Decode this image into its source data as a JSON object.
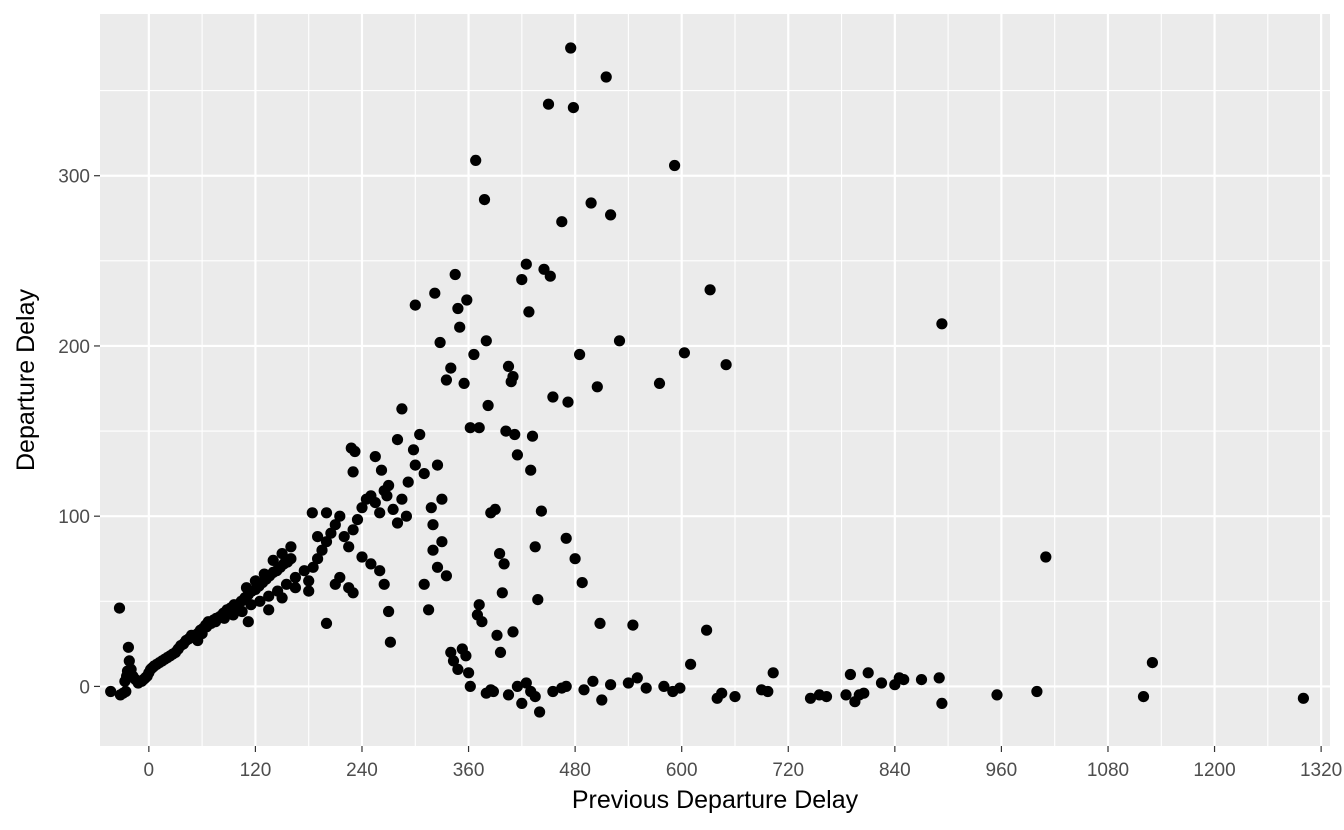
{
  "chart_data": {
    "type": "scatter",
    "title": "",
    "xlabel": "Previous Departure Delay",
    "ylabel": "Departure Delay",
    "xlim": [
      -55,
      1330
    ],
    "ylim": [
      -35,
      395
    ],
    "x_ticks": [
      0,
      120,
      240,
      360,
      480,
      600,
      720,
      840,
      960,
      1080,
      1200,
      1320
    ],
    "x_tick_labels": [
      "0",
      "120",
      "240",
      "360",
      "480",
      "600",
      "720",
      "840",
      "960",
      "1080",
      "1200",
      "1320"
    ],
    "y_ticks": [
      0,
      100,
      200,
      300
    ],
    "y_tick_labels": [
      "0",
      "100",
      "200",
      "300"
    ],
    "grid": true,
    "panel_background": "#ebebeb",
    "grid_color": "#ffffff",
    "point_color": "#000000",
    "series": [
      {
        "points": [
          [
            -43,
            -3
          ],
          [
            -33,
            46
          ],
          [
            -32,
            -5
          ],
          [
            -29,
            -4
          ],
          [
            -26,
            -3
          ],
          [
            -27,
            3
          ],
          [
            -25,
            6
          ],
          [
            -24,
            9
          ],
          [
            -23,
            23
          ],
          [
            -22,
            15
          ],
          [
            -20,
            10
          ],
          [
            -18,
            6
          ],
          [
            -15,
            4
          ],
          [
            -12,
            2
          ],
          [
            -10,
            3
          ],
          [
            -8,
            3
          ],
          [
            -6,
            4
          ],
          [
            -4,
            5
          ],
          [
            -2,
            6
          ],
          [
            0,
            8
          ],
          [
            2,
            10
          ],
          [
            4,
            11
          ],
          [
            6,
            12
          ],
          [
            9,
            13
          ],
          [
            12,
            14
          ],
          [
            15,
            15
          ],
          [
            18,
            16
          ],
          [
            21,
            17
          ],
          [
            24,
            18
          ],
          [
            27,
            19
          ],
          [
            30,
            20
          ],
          [
            33,
            22
          ],
          [
            36,
            24
          ],
          [
            39,
            25
          ],
          [
            42,
            27
          ],
          [
            45,
            28
          ],
          [
            48,
            30
          ],
          [
            52,
            30
          ],
          [
            55,
            31
          ],
          [
            58,
            33
          ],
          [
            61,
            34
          ],
          [
            64,
            36
          ],
          [
            67,
            38
          ],
          [
            70,
            37
          ],
          [
            73,
            39
          ],
          [
            76,
            40
          ],
          [
            80,
            41
          ],
          [
            84,
            43
          ],
          [
            88,
            45
          ],
          [
            92,
            46
          ],
          [
            96,
            48
          ],
          [
            100,
            47
          ],
          [
            104,
            50
          ],
          [
            108,
            52
          ],
          [
            112,
            54
          ],
          [
            116,
            56
          ],
          [
            120,
            57
          ],
          [
            124,
            59
          ],
          [
            128,
            61
          ],
          [
            132,
            63
          ],
          [
            136,
            65
          ],
          [
            140,
            67
          ],
          [
            144,
            68
          ],
          [
            148,
            70
          ],
          [
            152,
            72
          ],
          [
            156,
            73
          ],
          [
            160,
            75
          ],
          [
            55,
            27
          ],
          [
            60,
            31
          ],
          [
            65,
            35
          ],
          [
            75,
            38
          ],
          [
            85,
            40
          ],
          [
            95,
            42
          ],
          [
            105,
            44
          ],
          [
            115,
            48
          ],
          [
            125,
            50
          ],
          [
            135,
            53
          ],
          [
            145,
            56
          ],
          [
            155,
            60
          ],
          [
            165,
            64
          ],
          [
            175,
            68
          ],
          [
            110,
            58
          ],
          [
            120,
            62
          ],
          [
            130,
            66
          ],
          [
            140,
            74
          ],
          [
            150,
            78
          ],
          [
            160,
            82
          ],
          [
            112,
            38
          ],
          [
            135,
            45
          ],
          [
            150,
            52
          ],
          [
            165,
            58
          ],
          [
            180,
            62
          ],
          [
            185,
            70
          ],
          [
            190,
            75
          ],
          [
            195,
            80
          ],
          [
            200,
            85
          ],
          [
            205,
            90
          ],
          [
            210,
            95
          ],
          [
            215,
            100
          ],
          [
            220,
            88
          ],
          [
            225,
            82
          ],
          [
            230,
            92
          ],
          [
            235,
            98
          ],
          [
            240,
            105
          ],
          [
            245,
            110
          ],
          [
            250,
            112
          ],
          [
            255,
            108
          ],
          [
            260,
            102
          ],
          [
            265,
            115
          ],
          [
            270,
            118
          ],
          [
            275,
            104
          ],
          [
            280,
            96
          ],
          [
            285,
            110
          ],
          [
            290,
            100
          ],
          [
            180,
            56
          ],
          [
            190,
            88
          ],
          [
            200,
            102
          ],
          [
            210,
            60
          ],
          [
            215,
            64
          ],
          [
            225,
            58
          ],
          [
            230,
            55
          ],
          [
            240,
            76
          ],
          [
            250,
            72
          ],
          [
            260,
            68
          ],
          [
            265,
            60
          ],
          [
            270,
            44
          ],
          [
            272,
            26
          ],
          [
            200,
            37
          ],
          [
            184,
            102
          ],
          [
            230,
            126
          ],
          [
            228,
            140
          ],
          [
            232,
            138
          ],
          [
            255,
            135
          ],
          [
            262,
            127
          ],
          [
            268,
            112
          ],
          [
            280,
            145
          ],
          [
            285,
            163
          ],
          [
            292,
            120
          ],
          [
            298,
            139
          ],
          [
            300,
            130
          ],
          [
            305,
            148
          ],
          [
            310,
            125
          ],
          [
            318,
            105
          ],
          [
            320,
            95
          ],
          [
            325,
            130
          ],
          [
            330,
            110
          ],
          [
            300,
            224
          ],
          [
            322,
            231
          ],
          [
            328,
            202
          ],
          [
            335,
            180
          ],
          [
            340,
            187
          ],
          [
            345,
            242
          ],
          [
            348,
            222
          ],
          [
            350,
            211
          ],
          [
            355,
            178
          ],
          [
            358,
            227
          ],
          [
            362,
            152
          ],
          [
            366,
            195
          ],
          [
            368,
            309
          ],
          [
            372,
            152
          ],
          [
            378,
            286
          ],
          [
            380,
            203
          ],
          [
            382,
            165
          ],
          [
            385,
            102
          ],
          [
            390,
            104
          ],
          [
            395,
            78
          ],
          [
            398,
            55
          ],
          [
            400,
            72
          ],
          [
            402,
            150
          ],
          [
            405,
            188
          ],
          [
            408,
            179
          ],
          [
            410,
            182
          ],
          [
            412,
            148
          ],
          [
            415,
            136
          ],
          [
            420,
            239
          ],
          [
            425,
            248
          ],
          [
            428,
            220
          ],
          [
            430,
            127
          ],
          [
            432,
            147
          ],
          [
            435,
            82
          ],
          [
            438,
            51
          ],
          [
            442,
            103
          ],
          [
            445,
            245
          ],
          [
            450,
            342
          ],
          [
            452,
            241
          ],
          [
            455,
            170
          ],
          [
            465,
            273
          ],
          [
            470,
            87
          ],
          [
            472,
            167
          ],
          [
            475,
            375
          ],
          [
            478,
            340
          ],
          [
            480,
            75
          ],
          [
            485,
            195
          ],
          [
            488,
            61
          ],
          [
            498,
            284
          ],
          [
            505,
            176
          ],
          [
            508,
            37
          ],
          [
            515,
            358
          ],
          [
            520,
            277
          ],
          [
            530,
            203
          ],
          [
            545,
            36
          ],
          [
            575,
            178
          ],
          [
            580,
            0
          ],
          [
            590,
            -3
          ],
          [
            592,
            306
          ],
          [
            598,
            -1
          ],
          [
            603,
            196
          ],
          [
            610,
            13
          ],
          [
            628,
            33
          ],
          [
            632,
            233
          ],
          [
            640,
            -7
          ],
          [
            645,
            -4
          ],
          [
            650,
            189
          ],
          [
            660,
            -6
          ],
          [
            690,
            -2
          ],
          [
            697,
            -3
          ],
          [
            703,
            8
          ],
          [
            745,
            -7
          ],
          [
            755,
            -5
          ],
          [
            763,
            -6
          ],
          [
            785,
            -5
          ],
          [
            790,
            7
          ],
          [
            795,
            -9
          ],
          [
            800,
            -5
          ],
          [
            805,
            -4
          ],
          [
            810,
            8
          ],
          [
            825,
            2
          ],
          [
            840,
            1
          ],
          [
            845,
            5
          ],
          [
            850,
            4
          ],
          [
            870,
            4
          ],
          [
            890,
            5
          ],
          [
            893,
            213
          ],
          [
            893,
            -10
          ],
          [
            955,
            -5
          ],
          [
            1000,
            -3
          ],
          [
            1010,
            76
          ],
          [
            1120,
            -6
          ],
          [
            1130,
            14
          ],
          [
            1300,
            -7
          ],
          [
            310,
            60
          ],
          [
            315,
            45
          ],
          [
            320,
            80
          ],
          [
            325,
            70
          ],
          [
            330,
            85
          ],
          [
            335,
            65
          ],
          [
            340,
            20
          ],
          [
            343,
            15
          ],
          [
            348,
            10
          ],
          [
            353,
            22
          ],
          [
            357,
            18
          ],
          [
            360,
            8
          ],
          [
            362,
            0
          ],
          [
            370,
            42
          ],
          [
            372,
            48
          ],
          [
            375,
            38
          ],
          [
            380,
            -4
          ],
          [
            385,
            -2
          ],
          [
            388,
            -3
          ],
          [
            392,
            30
          ],
          [
            396,
            20
          ],
          [
            405,
            -5
          ],
          [
            410,
            32
          ],
          [
            415,
            0
          ],
          [
            420,
            -10
          ],
          [
            425,
            2
          ],
          [
            430,
            -3
          ],
          [
            435,
            -6
          ],
          [
            440,
            -15
          ],
          [
            455,
            -3
          ],
          [
            465,
            -1
          ],
          [
            470,
            0
          ],
          [
            490,
            -2
          ],
          [
            500,
            3
          ],
          [
            510,
            -8
          ],
          [
            520,
            1
          ],
          [
            540,
            2
          ],
          [
            550,
            5
          ],
          [
            560,
            -1
          ]
        ]
      }
    ]
  }
}
